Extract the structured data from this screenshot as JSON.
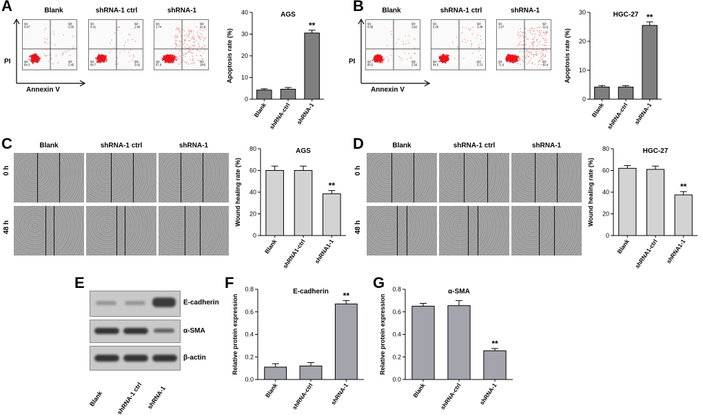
{
  "panels": {
    "A": "A",
    "B": "B",
    "C": "C",
    "D": "D",
    "E": "E",
    "F": "F",
    "G": "G"
  },
  "flow_headers": [
    "Blank",
    "shRNA-1 ctrl",
    "shRNA-1"
  ],
  "flow_axes": {
    "y": "PI",
    "x": "Annexin V"
  },
  "flow_A": [
    {
      "q1": "Q1\n0.67",
      "q2": "Q2\n2.55",
      "q3": "Q3\n2.45",
      "q4": "Q4\n94.3"
    },
    {
      "q1": "Q1\n0.41",
      "q2": "Q2\n1.90",
      "q3": "Q3\n3.02",
      "q4": "Q4\n94.7"
    },
    {
      "q1": "Q1\n1.74",
      "q2": "Q2\n11.9",
      "q3": "Q3\n18.5",
      "q4": "Q4\n67.9"
    }
  ],
  "flow_B": [
    {
      "q1": "Q1\n0.58",
      "q2": "Q2\n1.62",
      "q3": "Q3\n2.26",
      "q4": "Q4\n95.5"
    },
    {
      "q1": "Q1\n0.28",
      "q2": "Q2\n1.49",
      "q3": "Q3\n3.72",
      "q4": "Q4\n94.5"
    },
    {
      "q1": "Q1\n1.67",
      "q2": "Q2\n11.3",
      "q3": "Q3\n15.4",
      "q4": "Q4\n71.6"
    }
  ],
  "wound_headers": [
    "Blank",
    "shRNA-1 ctrl",
    "shRNA-1"
  ],
  "wound_rows": [
    "0 h",
    "48 h"
  ],
  "western": {
    "rows": [
      "E-cadherin",
      "α-SMA",
      "β-actin"
    ],
    "lanes": [
      "Blank",
      "shRNA-1 ctrl",
      "shRNA-1"
    ]
  },
  "chart_data": [
    {
      "id": "A",
      "type": "bar",
      "title": "AGS",
      "ylabel": "Apoptosis rate (%)",
      "xlabel": "",
      "categories": [
        "Blank",
        "shRNA-ctrl",
        "shRNA-1"
      ],
      "values": [
        4.2,
        4.6,
        30.5
      ],
      "errors": [
        0.6,
        0.8,
        1.3
      ],
      "ylim": [
        0,
        40
      ],
      "yticks": [
        0,
        10,
        20,
        30,
        40
      ],
      "annotations": [
        {
          "category": "shRNA-1",
          "text": "**"
        }
      ]
    },
    {
      "id": "B",
      "type": "bar",
      "title": "HGC-27",
      "ylabel": "Apoptosis rate (%)",
      "xlabel": "",
      "categories": [
        "Blank",
        "shRNA-ctrl",
        "shRNA-1"
      ],
      "values": [
        4.2,
        4.2,
        25.5
      ],
      "errors": [
        0.5,
        0.5,
        1.2
      ],
      "ylim": [
        0,
        30
      ],
      "yticks": [
        0,
        10,
        20,
        30
      ],
      "annotations": [
        {
          "category": "shRNA-1",
          "text": "**"
        }
      ]
    },
    {
      "id": "C",
      "type": "bar",
      "title": "AGS",
      "ylabel": "Wound healing rate (%)",
      "xlabel": "",
      "categories": [
        "Blank",
        "shRNA1-ctrl",
        "shRNA1-1"
      ],
      "values": [
        60,
        60,
        38.5
      ],
      "errors": [
        4,
        4,
        3
      ],
      "ylim": [
        0,
        80
      ],
      "yticks": [
        0,
        20,
        40,
        60,
        80
      ],
      "annotations": [
        {
          "category": "shRNA1-1",
          "text": "**"
        }
      ]
    },
    {
      "id": "D",
      "type": "bar",
      "title": "HGC-27",
      "ylabel": "Wound healing rate (%)",
      "xlabel": "",
      "categories": [
        "Blank",
        "shRNA1-ctrl",
        "shRNA1-1"
      ],
      "values": [
        62,
        61,
        37.5
      ],
      "errors": [
        2.5,
        3,
        3
      ],
      "ylim": [
        0,
        80
      ],
      "yticks": [
        0,
        20,
        40,
        60,
        80
      ],
      "annotations": [
        {
          "category": "shRNA1-1",
          "text": "**"
        }
      ]
    },
    {
      "id": "F",
      "type": "bar",
      "title": "E-cadherin",
      "ylabel": "Relative protein expression",
      "xlabel": "",
      "categories": [
        "Blank",
        "shRNA-ctrl",
        "shRNA-1"
      ],
      "values": [
        0.11,
        0.12,
        0.67
      ],
      "errors": [
        0.03,
        0.03,
        0.03
      ],
      "ylim": [
        0,
        0.8
      ],
      "yticks": [
        0.0,
        0.2,
        0.4,
        0.6,
        0.8
      ],
      "annotations": [
        {
          "category": "shRNA-1",
          "text": "**"
        }
      ]
    },
    {
      "id": "G",
      "type": "bar",
      "title": "α-SMA",
      "ylabel": "Relative protein expression",
      "xlabel": "",
      "categories": [
        "Blank",
        "shRNA-ctrl",
        "shRNA-1"
      ],
      "values": [
        0.65,
        0.655,
        0.255
      ],
      "errors": [
        0.025,
        0.045,
        0.02
      ],
      "ylim": [
        0,
        0.8
      ],
      "yticks": [
        0.0,
        0.2,
        0.4,
        0.6,
        0.8
      ],
      "annotations": [
        {
          "category": "shRNA-1",
          "text": "**"
        }
      ]
    }
  ]
}
